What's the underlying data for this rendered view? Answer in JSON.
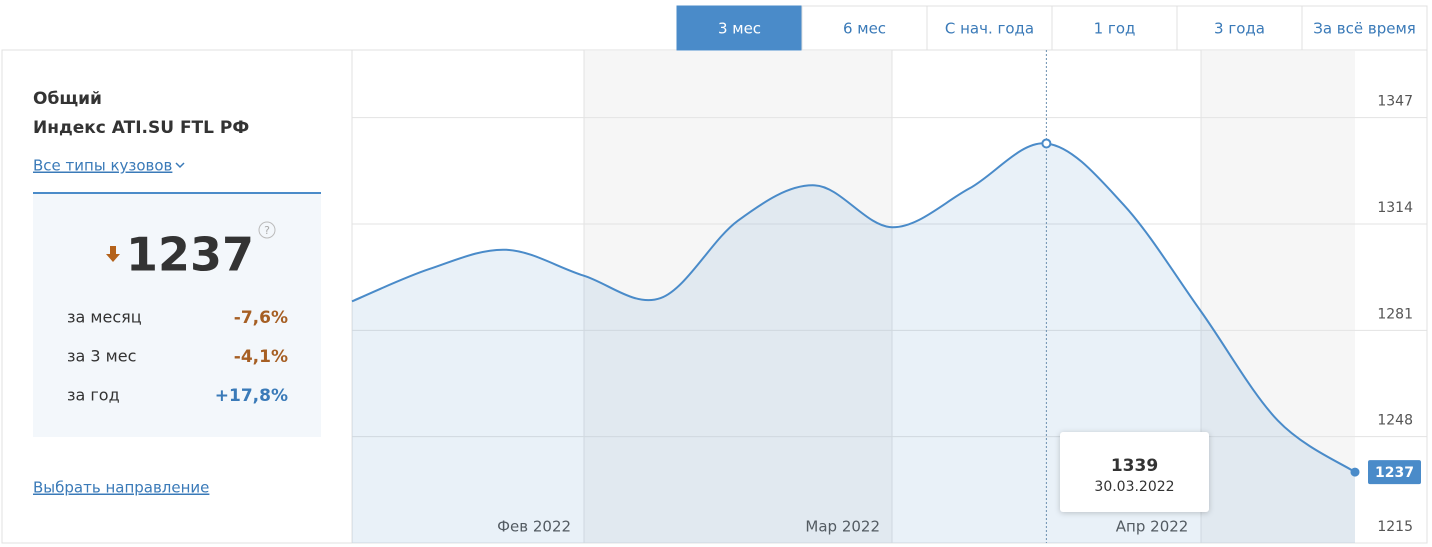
{
  "tabs": [
    "3 мес",
    "6 мес",
    "С нач. года",
    "1 год",
    "3 года",
    "За всё время"
  ],
  "active_tab": 0,
  "panel": {
    "title_line1": "Общий",
    "title_line2": "Индекс ATI.SU FTL РФ",
    "body_type_link": "Все типы кузовов",
    "current": 1237,
    "help": "?",
    "stats": [
      {
        "label": "за месяц",
        "value": "-7,6%"
      },
      {
        "label": "за 3 мес",
        "value": "-4,1%"
      },
      {
        "label": "за год",
        "value": "+17,8%"
      }
    ],
    "direction_link": "Выбрать направление"
  },
  "chart_data": {
    "type": "area",
    "color": "#4a8bc9",
    "categories": [
      null,
      null,
      null,
      null,
      null,
      null,
      null,
      null,
      null,
      null,
      null,
      null,
      null,
      null
    ],
    "values": [
      1290,
      1300,
      1306,
      1298,
      1291,
      1315,
      1326,
      1313,
      1325,
      1339,
      1320,
      1287,
      1253,
      1237
    ],
    "xticks": [
      {
        "value": 2.36,
        "label": "Фев 2022"
      },
      {
        "value": 6.36,
        "label": "Мар 2022"
      },
      {
        "value": 10.37,
        "label": "Апр 2022"
      }
    ],
    "ylim": [
      1215,
      1368
    ],
    "yticks": [
      1215,
      1248,
      1281,
      1314,
      1347
    ],
    "grid": true,
    "tooltip": {
      "index": 9,
      "date": "30.03.2022"
    }
  }
}
